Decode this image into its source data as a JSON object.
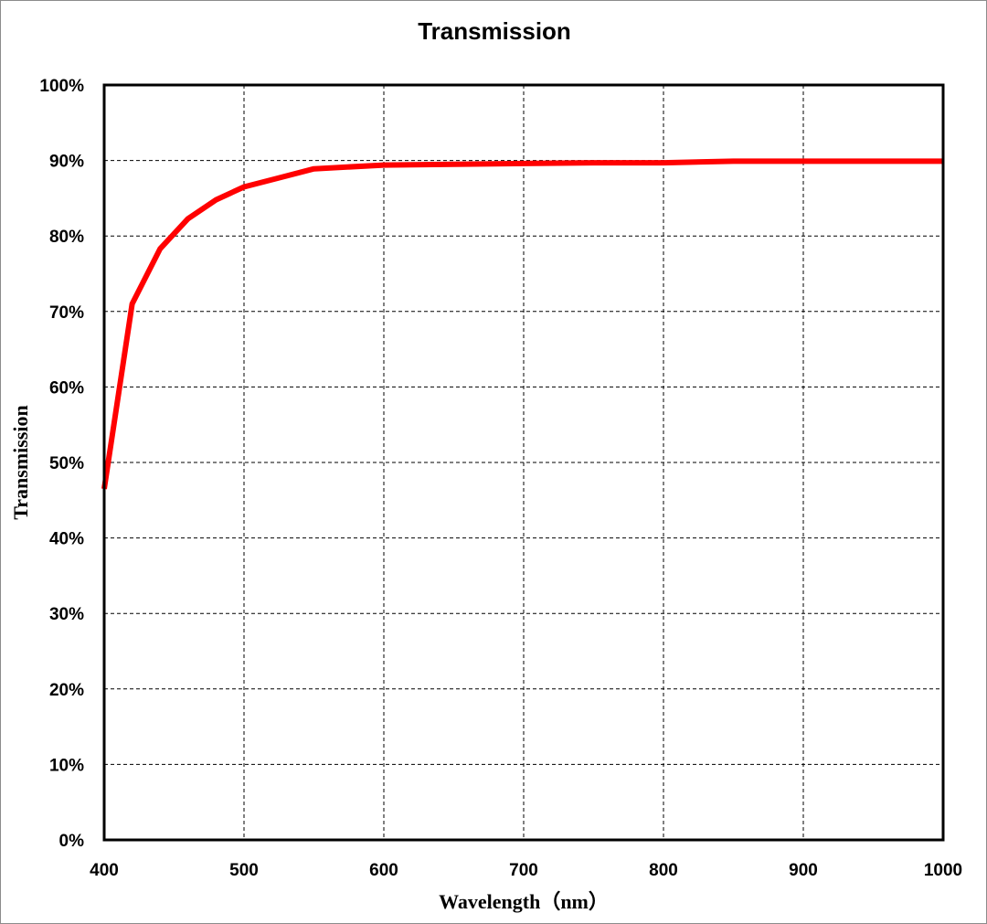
{
  "chart_data": {
    "type": "line",
    "title": "Transmission",
    "xlabel": "Wavelength（nm）",
    "ylabel": "Transmission",
    "xlim": [
      400,
      1000
    ],
    "ylim": [
      0,
      100
    ],
    "x_ticks": [
      400,
      500,
      600,
      700,
      800,
      900,
      1000
    ],
    "x_tick_labels": [
      "400",
      "500",
      "600",
      "700",
      "800",
      "900",
      "1000"
    ],
    "y_ticks": [
      0,
      10,
      20,
      30,
      40,
      50,
      60,
      70,
      80,
      90,
      100
    ],
    "y_tick_labels": [
      "0%",
      "10%",
      "20%",
      "30%",
      "40%",
      "50%",
      "60%",
      "70%",
      "80%",
      "90%",
      "100%"
    ],
    "grid": true,
    "legend": "none",
    "series": [
      {
        "color": "#ff0000",
        "x": [
          400,
          420,
          440,
          460,
          480,
          500,
          525,
          550,
          600,
          650,
          700,
          750,
          800,
          850,
          900,
          950,
          1000
        ],
        "y": [
          46.5,
          71,
          78.3,
          82.3,
          84.8,
          86.5,
          87.7,
          88.9,
          89.4,
          89.5,
          89.6,
          89.7,
          89.7,
          89.9,
          89.9,
          89.9,
          89.9
        ]
      }
    ]
  }
}
